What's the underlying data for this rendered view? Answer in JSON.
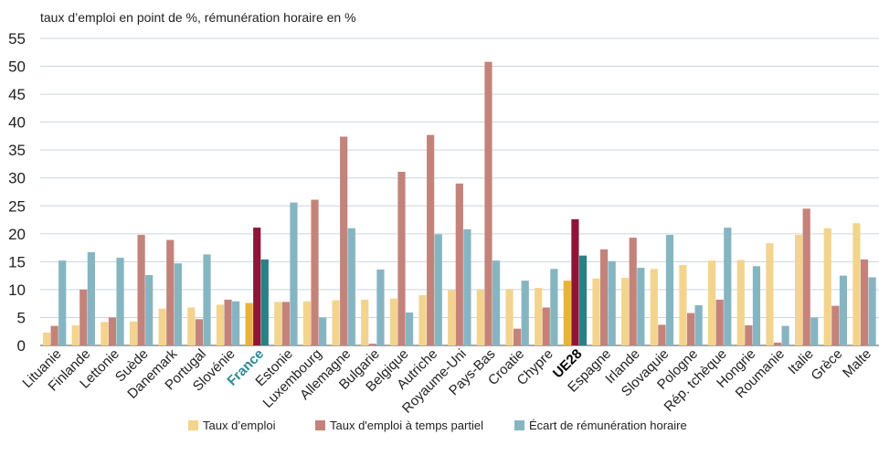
{
  "chart_data": {
    "type": "bar",
    "title": "taux d’emploi en point de %, rémunération horaire en %",
    "categories": [
      "Lituanie",
      "Finlande",
      "Lettonie",
      "Suède",
      "Danemark",
      "Portugal",
      "Slovénie",
      "France",
      "Estonie",
      "Luxembourg",
      "Allemagne",
      "Bulgarie",
      "Belgique",
      "Autriche",
      "Royaume-Uni",
      "Pays-Bas",
      "Croatie",
      "Chypre",
      "UE28",
      "Espagne",
      "Irlande",
      "Slovaquie",
      "Pologne",
      "Rép. tchèque",
      "Hongrie",
      "Roumanie",
      "Italie",
      "Grèce",
      "Malte"
    ],
    "highlight": [
      false,
      false,
      false,
      false,
      false,
      false,
      false,
      true,
      false,
      false,
      false,
      false,
      false,
      false,
      false,
      false,
      false,
      false,
      true,
      false,
      false,
      false,
      false,
      false,
      false,
      false,
      false,
      false,
      false
    ],
    "category_label_colors": [
      "#222",
      "#222",
      "#222",
      "#222",
      "#222",
      "#222",
      "#222",
      "#2e8a94",
      "#222",
      "#222",
      "#222",
      "#222",
      "#222",
      "#222",
      "#222",
      "#222",
      "#222",
      "#222",
      "#000",
      "#222",
      "#222",
      "#222",
      "#222",
      "#222",
      "#222",
      "#222",
      "#222",
      "#222",
      "#222"
    ],
    "series": [
      {
        "name": "Taux d’emploi",
        "color": "#f3d48e",
        "highlight_color": "#e8b339",
        "values": [
          2.3,
          3.6,
          4.2,
          4.3,
          6.6,
          6.8,
          7.3,
          7.6,
          7.8,
          7.9,
          8.1,
          8.2,
          8.4,
          9.0,
          9.9,
          10.0,
          10.1,
          10.3,
          11.6,
          12.0,
          12.1,
          13.7,
          14.4,
          15.2,
          15.3,
          18.3,
          19.8,
          21.0,
          21.9
        ]
      },
      {
        "name": "Taux d'emploi à temps partiel",
        "color": "#c4837a",
        "highlight_color": "#8e1538",
        "values": [
          3.5,
          10.0,
          5.0,
          19.8,
          18.9,
          4.7,
          8.2,
          21.1,
          7.8,
          26.1,
          37.4,
          0.3,
          31.1,
          37.7,
          29.0,
          50.8,
          3.0,
          6.8,
          22.6,
          17.2,
          19.3,
          3.7,
          5.8,
          8.2,
          3.6,
          0.5,
          24.5,
          7.1,
          15.4
        ]
      },
      {
        "name": "Écart de rémunération horaire",
        "color": "#86b5c2",
        "highlight_color": "#2a8185",
        "values": [
          15.2,
          16.7,
          15.7,
          12.6,
          14.7,
          16.3,
          7.9,
          15.4,
          25.6,
          5.0,
          21.0,
          13.6,
          5.9,
          19.9,
          20.8,
          15.2,
          11.6,
          13.7,
          16.1,
          15.1,
          13.9,
          19.8,
          7.2,
          21.1,
          14.2,
          3.5,
          5.0,
          12.5,
          12.2
        ]
      }
    ],
    "ylim": [
      0,
      55
    ],
    "yticks": [
      0,
      5,
      10,
      15,
      20,
      25,
      30,
      35,
      40,
      45,
      50,
      55
    ],
    "grid": true
  }
}
